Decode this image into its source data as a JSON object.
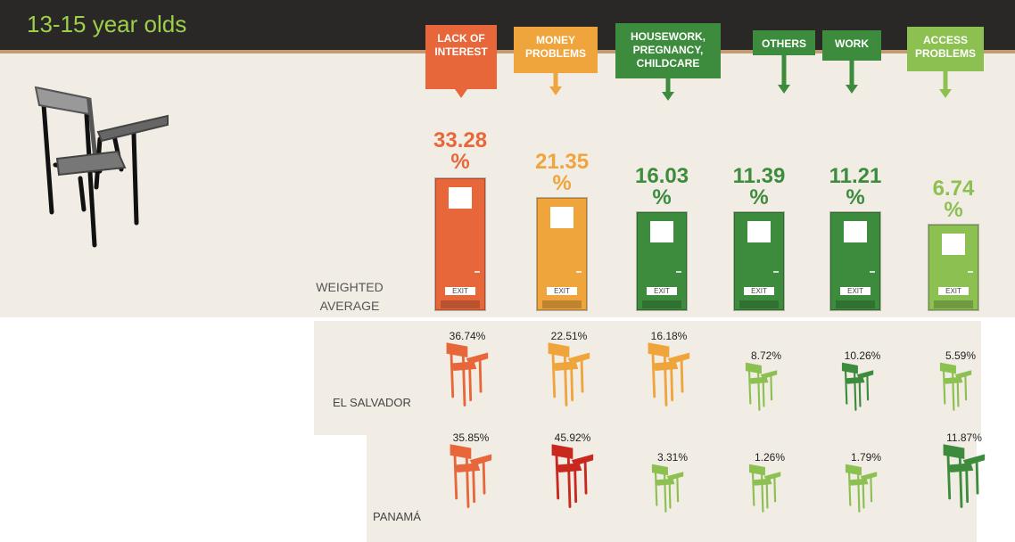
{
  "header": {
    "title": "13-15 year olds"
  },
  "weighted_average": {
    "label": "WEIGHTED AVERAGE",
    "exit_label": "EXIT",
    "causes": [
      {
        "label": "LACK OF INTEREST",
        "value": "33.28 %",
        "color": "#e8673a"
      },
      {
        "label": "MONEY PROBLEMS",
        "value": "21.35 %",
        "color": "#f0a43c"
      },
      {
        "label": "HOUSEWORK, PREGNANCY, CHILDCARE",
        "value": "16.03 %",
        "color": "#3d8c3d"
      },
      {
        "label": "OTHERS",
        "value": "11.39 %",
        "color": "#3d8c3d"
      },
      {
        "label": "WORK",
        "value": "11.21 %",
        "color": "#3d8c3d"
      },
      {
        "label": "ACCESS PROBLEMS",
        "value": "6.74 %",
        "color": "#8cc152"
      }
    ]
  },
  "countries": [
    {
      "name": "EL SALVADOR",
      "values": [
        {
          "text": "36.74%",
          "color": "#e8673a"
        },
        {
          "text": "22.51%",
          "color": "#f0a43c"
        },
        {
          "text": "16.18%",
          "color": "#f0a43c"
        },
        {
          "text": "8.72%",
          "color": "#8cc152"
        },
        {
          "text": "10.26%",
          "color": "#3d8c3d"
        },
        {
          "text": "5.59%",
          "color": "#8cc152"
        }
      ]
    },
    {
      "name": "PANAMÁ",
      "values": [
        {
          "text": "35.85%",
          "color": "#e8673a"
        },
        {
          "text": "45.92%",
          "color": "#c8281e"
        },
        {
          "text": "3.31%",
          "color": "#8cc152"
        },
        {
          "text": "1.26%",
          "color": "#8cc152"
        },
        {
          "text": "1.79%",
          "color": "#8cc152"
        },
        {
          "text": "11.87%",
          "color": "#3d8c3d"
        }
      ]
    }
  ]
}
